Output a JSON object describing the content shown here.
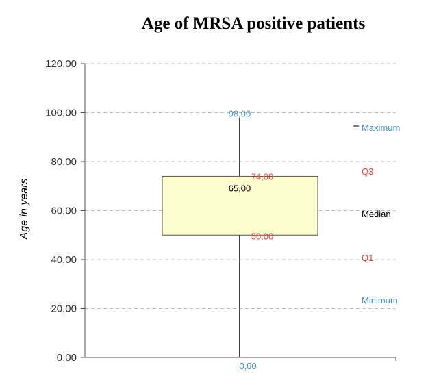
{
  "colors": {
    "extreme": "#4a90d0",
    "quartile": "#e8443a",
    "median": "#000000",
    "box_fill": "#fdfdd0",
    "box_stroke": "#555555",
    "whisker": "#444444",
    "grid": "#bdbdbd"
  },
  "chart_data": {
    "type": "boxplot",
    "title": "Age of MRSA positive patients",
    "ylabel": "Age in years",
    "ylim": [
      0,
      120
    ],
    "ticks": [
      {
        "value": 0,
        "label": "0,00"
      },
      {
        "value": 20,
        "label": "20,00"
      },
      {
        "value": 40,
        "label": "40,00"
      },
      {
        "value": 60,
        "label": "60,00"
      },
      {
        "value": 80,
        "label": "80,00"
      },
      {
        "value": 100,
        "label": "100,00"
      },
      {
        "value": 120,
        "label": "120,00"
      }
    ],
    "grid": true,
    "stats": {
      "min": 0,
      "q1": 50,
      "median": 65,
      "q3": 74,
      "max": 98,
      "min_label": "0,00",
      "q1_label": "50,00",
      "median_label": "65,00",
      "q3_label": "74,00",
      "max_label": "98,00"
    },
    "legend": {
      "maximum": "Maximum",
      "q3": "Q3",
      "median": "Median",
      "q1": "Q1",
      "minimum": "Minimum"
    }
  }
}
